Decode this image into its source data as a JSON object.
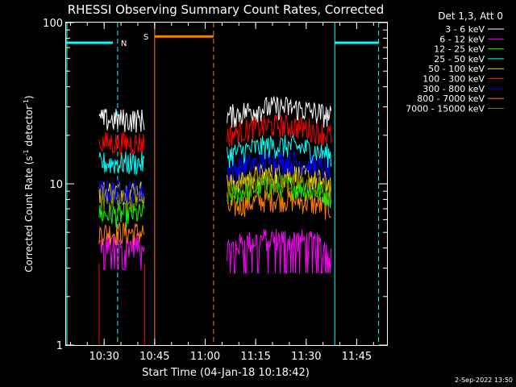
{
  "chart_data": {
    "type": "line",
    "title": "RHESSI Observing Summary Count Rates, Corrected",
    "xlabel": "Start Time (04-Jan-18 10:18:42)",
    "ylabel": "Corrected Count Rate (s⁻¹ detector⁻¹)",
    "ylabel_main": "Corrected Count Rate (s",
    "ylabel_sup1": "-1",
    "ylabel_mid": " detector",
    "ylabel_sup2": "-1",
    "ylabel_end": ")",
    "yscale": "log",
    "ylim": [
      1,
      100
    ],
    "xlim": [
      "10:18:42",
      "11:54:00"
    ],
    "x_ticks": [
      "10:30",
      "10:45",
      "11:00",
      "11:15",
      "11:30",
      "11:45"
    ],
    "y_ticks": [
      "1",
      "10",
      "100"
    ],
    "legend_header": "Det 1,3, Att 0",
    "legend_position": "right",
    "series": [
      {
        "name": "3 - 6 keV",
        "color": "#ffffff",
        "values": [
          25,
          26
        ]
      },
      {
        "name": "6 - 12 keV",
        "color": "#ff00ff",
        "values": [
          4.2,
          4.0
        ]
      },
      {
        "name": "12 - 25 keV",
        "color": "#00ff00",
        "values": [
          6.5,
          8.5
        ]
      },
      {
        "name": "25 - 50 keV",
        "color": "#00ffff",
        "values": [
          13.5,
          15
        ]
      },
      {
        "name": "50 - 100 keV",
        "color": "#ffd700",
        "values": [
          9.0,
          10
        ]
      },
      {
        "name": "100 - 300 keV",
        "color": "#ff0000",
        "values": [
          18,
          20
        ]
      },
      {
        "name": "300 - 800 keV",
        "color": "#0000ff",
        "values": [
          9,
          12
        ]
      },
      {
        "name": "800 - 7000 keV",
        "color": "#ff8000",
        "values": [
          5,
          7
        ]
      },
      {
        "name": "7000 - 15000 keV",
        "color": "#808000",
        "values": [
          8,
          9
        ]
      }
    ],
    "segments": [
      {
        "start": "10:28:30",
        "end": "10:42:00"
      },
      {
        "start": "11:06:30",
        "end": "11:37:30"
      }
    ],
    "flags": [
      {
        "label": "N",
        "color": "#00ffff",
        "value": 75
      },
      {
        "label": "S",
        "color": "#ff8000",
        "value": 82
      }
    ],
    "timestamp": "2-Sep-2022 13:50"
  }
}
